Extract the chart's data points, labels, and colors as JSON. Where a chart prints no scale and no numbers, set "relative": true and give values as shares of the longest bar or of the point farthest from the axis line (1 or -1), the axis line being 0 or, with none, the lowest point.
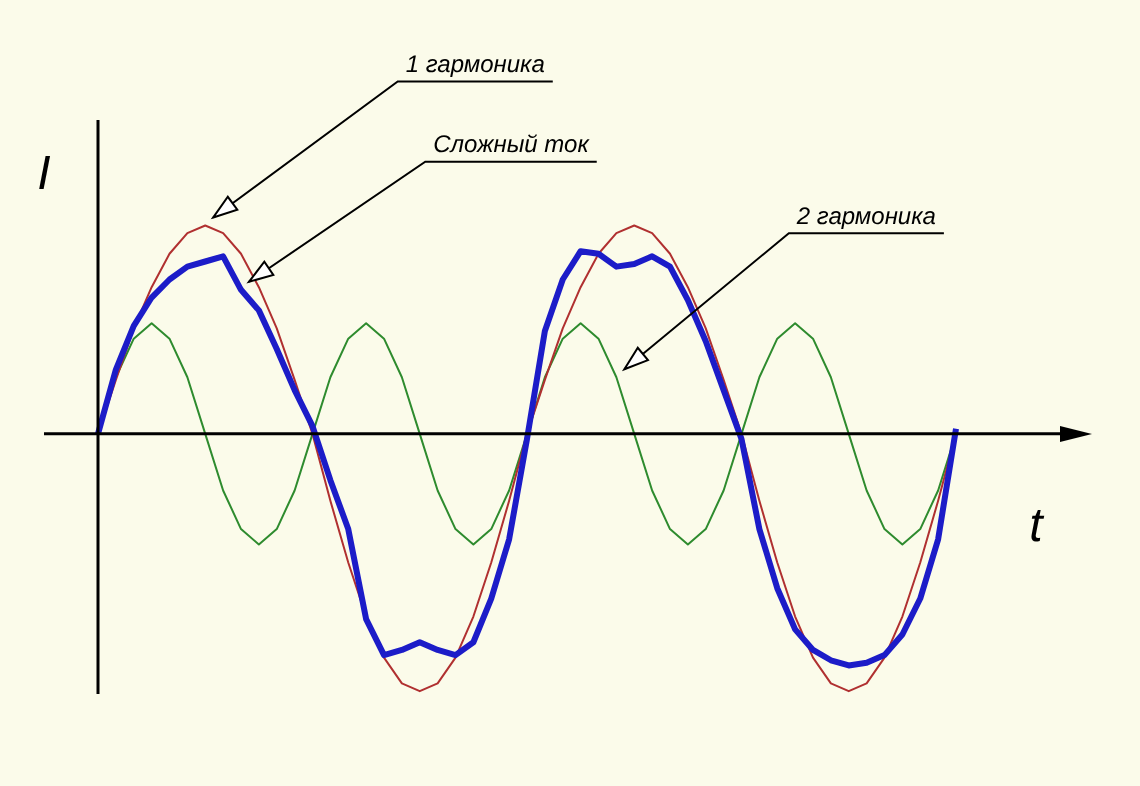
{
  "chart_data": {
    "type": "line",
    "relative": true,
    "xlabel": "t",
    "ylabel": "I",
    "legend": false,
    "marker": "none",
    "categories": [
      null,
      null,
      null,
      null,
      null,
      null,
      null,
      null,
      null,
      null,
      null,
      null,
      null,
      null,
      null,
      null,
      null,
      null,
      null,
      null,
      null,
      null,
      null,
      null,
      null,
      null,
      null,
      null,
      null,
      null,
      null,
      null,
      null,
      null,
      null,
      null,
      null,
      null,
      null,
      null,
      null,
      null,
      null,
      null,
      null,
      null,
      null,
      null,
      null
    ],
    "series": [
      {
        "name": "1 гармоника",
        "color": "#b03030",
        "values": [
          0,
          0.21,
          0.41,
          0.57,
          0.7,
          0.78,
          0.81,
          0.78,
          0.7,
          0.57,
          0.41,
          0.21,
          0,
          -0.26,
          -0.5,
          -0.71,
          -0.87,
          -0.97,
          -1,
          -0.97,
          -0.87,
          -0.71,
          -0.5,
          -0.26,
          0,
          0.21,
          0.41,
          0.57,
          0.7,
          0.78,
          0.81,
          0.78,
          0.7,
          0.57,
          0.41,
          0.21,
          0,
          -0.26,
          -0.5,
          -0.71,
          -0.87,
          -0.97,
          -1,
          -0.97,
          -0.87,
          -0.71,
          -0.5,
          -0.26,
          0
        ]
      },
      {
        "name": "Сложный ток",
        "color": "#1c1cc8",
        "values": [
          0,
          0.25,
          0.42,
          0.53,
          0.6,
          0.65,
          0.67,
          0.69,
          0.56,
          0.48,
          0.33,
          0.17,
          0.03,
          -0.18,
          -0.37,
          -0.72,
          -0.86,
          -0.84,
          -0.81,
          -0.84,
          -0.86,
          -0.81,
          -0.64,
          -0.41,
          -0.02,
          0.4,
          0.6,
          0.71,
          0.7,
          0.65,
          0.66,
          0.69,
          0.65,
          0.52,
          0.36,
          0.17,
          -0.02,
          -0.37,
          -0.6,
          -0.76,
          -0.84,
          -0.88,
          -0.9,
          -0.89,
          -0.86,
          -0.78,
          -0.64,
          -0.41,
          0.02
        ]
      },
      {
        "name": "2 гармоника",
        "color": "#2e8b2e",
        "values": [
          0,
          0.22,
          0.37,
          0.43,
          0.37,
          0.22,
          0,
          -0.22,
          -0.37,
          -0.43,
          -0.37,
          -0.22,
          0,
          0.22,
          0.37,
          0.43,
          0.37,
          0.22,
          0,
          -0.22,
          -0.37,
          -0.43,
          -0.37,
          -0.22,
          0,
          0.22,
          0.37,
          0.43,
          0.37,
          0.22,
          0,
          -0.22,
          -0.37,
          -0.43,
          -0.37,
          -0.22,
          0,
          0.22,
          0.37,
          0.43,
          0.37,
          0.22,
          0,
          -0.22,
          -0.37,
          -0.43,
          -0.37,
          -0.22,
          0
        ]
      }
    ]
  }
}
